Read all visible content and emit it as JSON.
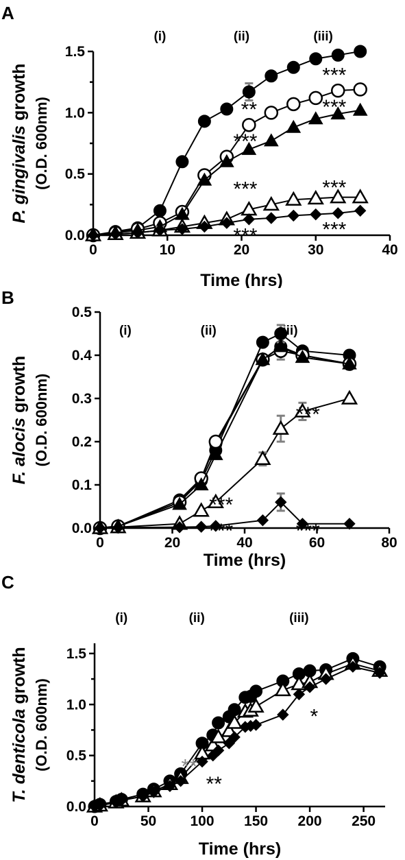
{
  "chart_data": [
    {
      "panel": "A",
      "type": "line",
      "ylabel_italic": "P. gingivalis",
      "ylabel_rest": " growth",
      "ylabel_unit": "(O.D. 600nm)",
      "xlabel": "Time (hrs)",
      "xlim": [
        0,
        40
      ],
      "ylim": [
        0,
        1.5
      ],
      "xticks": [
        "0",
        "10",
        "20",
        "30",
        "40"
      ],
      "yticks": [
        "0.0",
        "0.5",
        "1.0",
        "1.5"
      ],
      "phases": [
        {
          "label": "(i)",
          "x": 9
        },
        {
          "label": "(ii)",
          "x": 20
        },
        {
          "label": "(iii)",
          "x": 31
        }
      ],
      "series": [
        {
          "marker": "filled-circle",
          "x": [
            0,
            3,
            6,
            9,
            12,
            15,
            18,
            21,
            24,
            27,
            30,
            33,
            36
          ],
          "y": [
            0,
            0.03,
            0.06,
            0.2,
            0.6,
            0.93,
            1.03,
            1.17,
            1.3,
            1.37,
            1.44,
            1.47,
            1.5
          ],
          "err": [
            {
              "x": 21,
              "e": 0.07
            }
          ]
        },
        {
          "marker": "open-circle",
          "x": [
            0,
            3,
            6,
            9,
            12,
            15,
            18,
            21,
            24,
            27,
            30,
            33,
            36
          ],
          "y": [
            0,
            0.02,
            0.05,
            0.1,
            0.19,
            0.49,
            0.64,
            0.9,
            1.0,
            1.07,
            1.12,
            1.18,
            1.19
          ],
          "err": []
        },
        {
          "marker": "filled-triangle",
          "x": [
            0,
            3,
            6,
            9,
            12,
            15,
            18,
            21,
            24,
            27,
            30,
            33,
            36
          ],
          "y": [
            0,
            0.02,
            0.04,
            0.07,
            0.17,
            0.45,
            0.6,
            0.7,
            0.77,
            0.88,
            0.95,
            0.99,
            1.02
          ],
          "err": []
        },
        {
          "marker": "open-triangle",
          "x": [
            0,
            3,
            6,
            9,
            12,
            15,
            18,
            21,
            24,
            27,
            30,
            33,
            36
          ],
          "y": [
            0,
            0.01,
            0.02,
            0.04,
            0.07,
            0.1,
            0.13,
            0.21,
            0.25,
            0.29,
            0.3,
            0.31,
            0.31
          ],
          "err": [
            {
              "x": 9,
              "e": 0.03
            }
          ]
        },
        {
          "marker": "filled-diamond",
          "x": [
            0,
            3,
            6,
            9,
            12,
            15,
            18,
            21,
            24,
            27,
            30,
            33,
            36
          ],
          "y": [
            0,
            0.01,
            0.02,
            0.04,
            0.05,
            0.07,
            0.1,
            0.13,
            0.14,
            0.16,
            0.17,
            0.18,
            0.2
          ],
          "err": []
        }
      ],
      "annotations": [
        {
          "text": "***",
          "x": 32.5,
          "y": 1.33
        },
        {
          "text": "**",
          "x": 21,
          "y": 1.05
        },
        {
          "text": "***",
          "x": 32.5,
          "y": 1.07
        },
        {
          "text": "***",
          "x": 20.5,
          "y": 0.79
        },
        {
          "text": "***",
          "x": 20.5,
          "y": 0.4
        },
        {
          "text": "***",
          "x": 32.5,
          "y": 0.41
        },
        {
          "text": "***",
          "x": 20.5,
          "y": 0.02
        },
        {
          "text": "***",
          "x": 32.5,
          "y": 0.07
        }
      ]
    },
    {
      "panel": "B",
      "type": "line",
      "ylabel_italic": "F. alocis",
      "ylabel_rest": " growth",
      "ylabel_unit": "(O.D. 600nm)",
      "xlabel": "Time (hrs)",
      "xlim": [
        0,
        80
      ],
      "ylim": [
        0,
        0.5
      ],
      "xticks": [
        "0",
        "20",
        "40",
        "60",
        "80"
      ],
      "yticks": [
        "0.0",
        "0.1",
        "0.2",
        "0.3",
        "0.4",
        "0.5"
      ],
      "phases": [
        {
          "label": "(i)",
          "x": 7
        },
        {
          "label": "(ii)",
          "x": 30
        },
        {
          "label": "(iii)",
          "x": 52
        }
      ],
      "series": [
        {
          "marker": "filled-circle",
          "x": [
            0,
            5,
            22,
            28,
            32,
            45,
            50,
            56,
            69
          ],
          "y": [
            0,
            0.005,
            0.06,
            0.11,
            0.18,
            0.43,
            0.45,
            0.41,
            0.4
          ],
          "err": [
            {
              "x": 50,
              "e": 0.02
            }
          ]
        },
        {
          "marker": "filled-circle",
          "x": [
            0,
            5,
            22,
            28,
            32,
            45,
            50,
            56,
            69
          ],
          "y": [
            0,
            0.004,
            0.065,
            0.115,
            0.195,
            0.39,
            0.42,
            0.4,
            0.38
          ],
          "err": []
        },
        {
          "marker": "open-circle",
          "x": [
            0,
            5,
            22,
            28,
            32,
            45,
            50,
            56,
            69
          ],
          "y": [
            0,
            0.004,
            0.06,
            0.115,
            0.2,
            0.39,
            0.41,
            0.4,
            0.38
          ],
          "err": [
            {
              "x": 50,
              "e": 0.02
            },
            {
              "x": 56,
              "e": 0.01
            }
          ]
        },
        {
          "marker": "filled-triangle",
          "x": [
            0,
            5,
            22,
            28,
            32,
            45,
            50,
            56,
            69
          ],
          "y": [
            0,
            0.004,
            0.055,
            0.1,
            0.17,
            0.39,
            0.42,
            0.395,
            0.38
          ],
          "err": []
        },
        {
          "marker": "open-triangle",
          "x": [
            0,
            5,
            22,
            28,
            32,
            45,
            50,
            56,
            69
          ],
          "y": [
            0,
            0.002,
            0.01,
            0.04,
            0.06,
            0.16,
            0.23,
            0.27,
            0.3
          ],
          "err": [
            {
              "x": 45,
              "e": 0.015
            },
            {
              "x": 50,
              "e": 0.03
            },
            {
              "x": 56,
              "e": 0.02
            }
          ]
        },
        {
          "marker": "filled-diamond",
          "x": [
            0,
            5,
            22,
            28,
            32,
            45,
            50,
            56,
            69
          ],
          "y": [
            0,
            0.001,
            0.002,
            0.003,
            0.005,
            0.018,
            0.06,
            0.01,
            0.01
          ],
          "err": [
            {
              "x": 50,
              "e": 0.02
            }
          ]
        }
      ],
      "annotations": [
        {
          "text": "***",
          "x": 33.5,
          "y": 0.06
        },
        {
          "text": "***",
          "x": 33.5,
          "y": 0.0
        },
        {
          "text": "***",
          "x": 57.5,
          "y": 0.27
        },
        {
          "text": "***",
          "x": 57.5,
          "y": 0.0
        }
      ]
    },
    {
      "panel": "C",
      "type": "line",
      "ylabel_italic": "T. denticola",
      "ylabel_rest": " growth",
      "ylabel_unit": "(O.D. 600nm)",
      "xlabel": "Time (hrs)",
      "xlim": [
        0,
        270
      ],
      "ylim": [
        0,
        1.6
      ],
      "xticks": [
        "0",
        "50",
        "100",
        "150",
        "200",
        "250"
      ],
      "yticks": [
        "0.0",
        "0.5",
        "1.0",
        "1.5"
      ],
      "phases": [
        {
          "label": "(i)",
          "x": 25
        },
        {
          "label": "(ii)",
          "x": 95
        },
        {
          "label": "(iii)",
          "x": 190
        }
      ],
      "series": [
        {
          "marker": "filled-circle",
          "x": [
            0,
            5,
            20,
            25,
            45,
            55,
            70,
            80,
            100,
            110,
            115,
            125,
            130,
            140,
            145,
            150,
            175,
            190,
            200,
            215,
            240,
            265
          ],
          "y": [
            0,
            0.02,
            0.05,
            0.07,
            0.12,
            0.17,
            0.25,
            0.32,
            0.62,
            0.7,
            0.82,
            0.88,
            0.95,
            1.07,
            1.08,
            1.13,
            1.23,
            1.3,
            1.33,
            1.34,
            1.45,
            1.37
          ],
          "err": []
        },
        {
          "marker": "open-triangle",
          "x": [
            0,
            5,
            20,
            25,
            45,
            55,
            70,
            80,
            100,
            110,
            115,
            125,
            130,
            140,
            145,
            150,
            175,
            190,
            200,
            215,
            240,
            265
          ],
          "y": [
            0,
            0.01,
            0.04,
            0.06,
            0.1,
            0.15,
            0.22,
            0.28,
            0.52,
            0.6,
            0.68,
            0.74,
            0.82,
            0.93,
            0.94,
            0.98,
            1.14,
            1.2,
            1.22,
            1.3,
            1.4,
            1.33
          ],
          "err": []
        },
        {
          "marker": "filled-diamond",
          "x": [
            0,
            5,
            20,
            25,
            45,
            55,
            70,
            80,
            100,
            110,
            115,
            125,
            130,
            140,
            145,
            150,
            175,
            190,
            200,
            215,
            240,
            265
          ],
          "y": [
            0,
            0.01,
            0.04,
            0.06,
            0.1,
            0.14,
            0.2,
            0.25,
            0.44,
            0.5,
            0.55,
            0.62,
            0.68,
            0.78,
            0.79,
            0.8,
            0.9,
            1.1,
            1.17,
            1.25,
            1.37,
            1.31
          ],
          "err": []
        }
      ],
      "annotations": [
        {
          "text": "**",
          "x": 88,
          "y": 0.42,
          "gray": true
        },
        {
          "text": "**",
          "x": 111,
          "y": 0.25
        },
        {
          "text": "*",
          "x": 204,
          "y": 0.91
        }
      ]
    }
  ],
  "panel_labels": [
    "A",
    "B",
    "C"
  ]
}
